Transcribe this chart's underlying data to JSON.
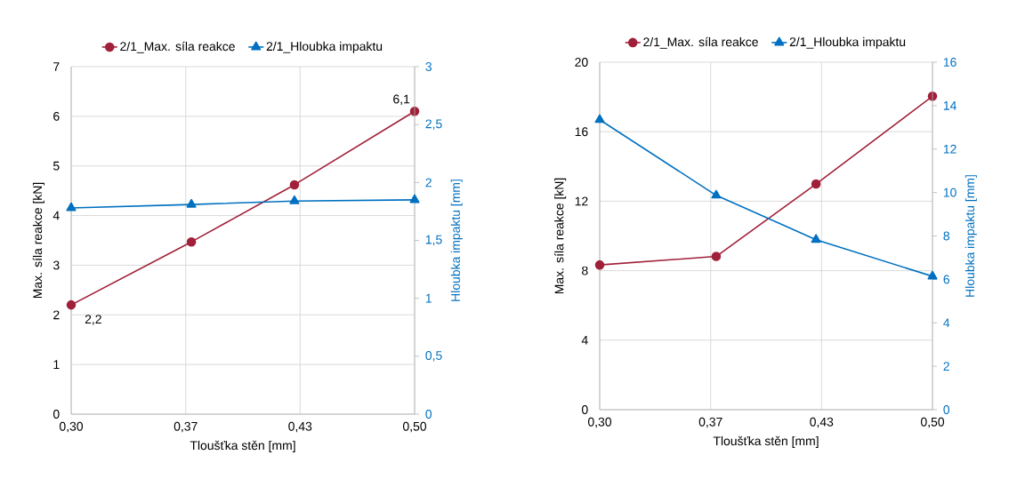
{
  "chart_data": [
    {
      "type": "line",
      "xlabel": "Tloušťka stěn [mm]",
      "ylabel": "Max. síla reakce [kN]",
      "y2label": "Hloubka impaktu [mm]",
      "x": [
        0.3,
        0.37,
        0.43,
        0.5
      ],
      "xlim": [
        0.3,
        0.5
      ],
      "xticks": [
        {
          "value": 0.3,
          "label": "0,30"
        },
        {
          "value": 0.3667,
          "label": "0,37"
        },
        {
          "value": 0.4333,
          "label": "0,43"
        },
        {
          "value": 0.5,
          "label": "0,50"
        }
      ],
      "ylim": [
        0,
        7
      ],
      "yticks": [
        0,
        1,
        2,
        3,
        4,
        5,
        6,
        7
      ],
      "y2lim": [
        0,
        3
      ],
      "y2ticks": [
        0,
        {
          "value": 0.5,
          "label": "0,5"
        },
        1,
        {
          "value": 1.5,
          "label": "1,5"
        },
        2,
        {
          "value": 2.5,
          "label": "2,5"
        },
        3
      ],
      "series": [
        {
          "name": "2/1_Max. síla reakce",
          "color": "#a0203a",
          "marker": "circle",
          "values": [
            2.2,
            3.47,
            4.62,
            6.1
          ],
          "value_labels": [
            "2,2",
            null,
            null,
            "6,1"
          ]
        },
        {
          "name": "2/1_Hloubka impaktu",
          "color": "#0070c0",
          "marker": "triangle",
          "axis": "y2",
          "values": [
            1.78,
            1.81,
            1.84,
            1.85
          ]
        }
      ],
      "grid": true,
      "legend": "top",
      "line_style": "solid"
    },
    {
      "type": "line",
      "xlabel": "Tloušťka stěn [mm]",
      "ylabel": "Max. síla reakce [kN]",
      "y2label": "Hloubka impaktu [mm]",
      "x": [
        0.3,
        0.37,
        0.43,
        0.5
      ],
      "xlim": [
        0.3,
        0.5
      ],
      "xticks": [
        {
          "value": 0.3,
          "label": "0,30"
        },
        {
          "value": 0.3667,
          "label": "0,37"
        },
        {
          "value": 0.4333,
          "label": "0,43"
        },
        {
          "value": 0.5,
          "label": "0,50"
        }
      ],
      "ylim": [
        0,
        20
      ],
      "yticks": [
        0,
        4,
        8,
        12,
        16,
        20
      ],
      "y2lim": [
        0,
        16
      ],
      "y2ticks": [
        0,
        2,
        4,
        6,
        8,
        10,
        12,
        14,
        16
      ],
      "series": [
        {
          "name": "2/1_Max. síla reakce",
          "color": "#a0203a",
          "marker": "circle",
          "values": [
            8.33,
            8.82,
            12.99,
            18.04
          ]
        },
        {
          "name": "2/1_Hloubka impaktu",
          "color": "#0070c0",
          "marker": "triangle",
          "axis": "y2",
          "values": [
            13.35,
            9.87,
            7.83,
            6.14
          ]
        }
      ],
      "grid": true,
      "legend": "top",
      "line_style": "solid"
    }
  ]
}
